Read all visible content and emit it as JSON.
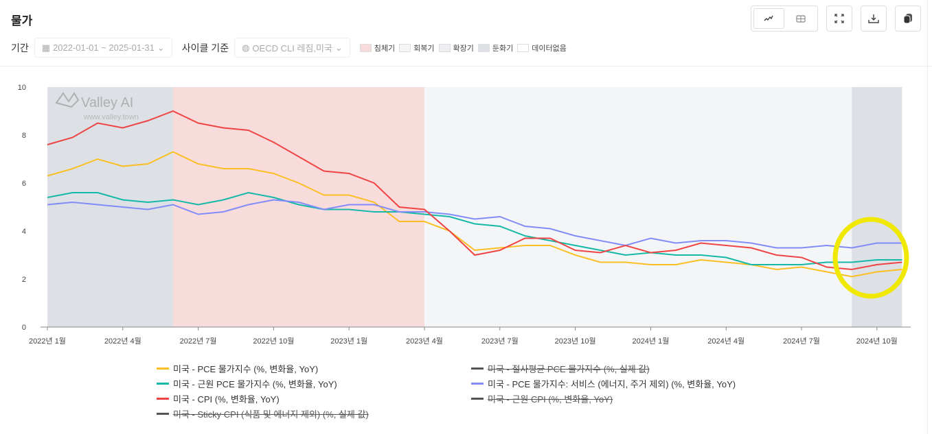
{
  "header": {
    "title": "물가"
  },
  "filters": {
    "period_label": "기간",
    "period_value": "2022-01-01 ~ 2025-01-31",
    "cycle_label": "사이클 기준",
    "cycle_value": "OECD CLI 레짐,미국",
    "phases": [
      {
        "label": "침체기",
        "color": "#f8dcdc"
      },
      {
        "label": "회복기",
        "color": "#f4f5f7"
      },
      {
        "label": "확장기",
        "color": "#eceef1"
      },
      {
        "label": "둔화기",
        "color": "#dde0e5"
      },
      {
        "label": "데이터없음",
        "color": "#ffffff"
      }
    ]
  },
  "toolbar": {
    "icons": [
      "line-chart-icon",
      "table-icon",
      "expand-icon",
      "download-icon",
      "copy-icon"
    ]
  },
  "watermark": {
    "brand": "Valley AI",
    "url": "www.valley.town"
  },
  "chart_data": {
    "type": "line",
    "ylim": [
      0,
      10
    ],
    "yticks": [
      0,
      2,
      4,
      6,
      8,
      10
    ],
    "xtick_labels": [
      "2022년 1월",
      "2022년 4월",
      "2022년 7월",
      "2022년 10월",
      "2023년 1월",
      "2023년 4월",
      "2023년 7월",
      "2023년 10월",
      "2024년 1월",
      "2024년 4월",
      "2024년 7월",
      "2024년 10월"
    ],
    "x_start": "2022-01",
    "x_end": "2024-11",
    "phases": [
      {
        "phase": "둔화기",
        "from": "2022-01",
        "to": "2022-06"
      },
      {
        "phase": "침체기",
        "from": "2022-06",
        "to": "2023-04"
      },
      {
        "phase": "회복기",
        "from": "2023-04",
        "to": "2024-09"
      },
      {
        "phase": "둔화기",
        "from": "2024-09",
        "to": "2024-11"
      }
    ],
    "series": [
      {
        "name": "미국 - PCE 물가지수 (%, 변화율, YoY)",
        "color": "#fbbf24",
        "visible": true,
        "values": [
          6.3,
          6.6,
          7.0,
          6.7,
          6.8,
          7.3,
          6.8,
          6.6,
          6.6,
          6.4,
          6.0,
          5.5,
          5.5,
          5.2,
          4.4,
          4.4,
          4.0,
          3.2,
          3.3,
          3.4,
          3.4,
          3.0,
          2.7,
          2.7,
          2.6,
          2.6,
          2.8,
          2.7,
          2.6,
          2.4,
          2.5,
          2.3,
          2.1,
          2.3,
          2.4
        ]
      },
      {
        "name": "미국 - 절사평균 PCE 물가지수 (%, 실제 값)",
        "color": "#555555",
        "visible": false
      },
      {
        "name": "미국 - 근원 PCE 물가지수 (%, 변화율, YoY)",
        "color": "#14b8a6",
        "visible": true,
        "values": [
          5.4,
          5.6,
          5.6,
          5.3,
          5.2,
          5.3,
          5.1,
          5.3,
          5.6,
          5.4,
          5.1,
          4.9,
          4.9,
          4.8,
          4.8,
          4.7,
          4.6,
          4.3,
          4.2,
          3.8,
          3.6,
          3.4,
          3.2,
          3.0,
          3.1,
          3.0,
          3.0,
          2.9,
          2.6,
          2.6,
          2.6,
          2.7,
          2.7,
          2.8,
          2.8
        ]
      },
      {
        "name": "미국 - PCE 물가지수: 서비스 (에너지, 주거 제외) (%, 변화율, YoY)",
        "color": "#818cf8",
        "visible": true,
        "values": [
          5.1,
          5.2,
          5.1,
          5.0,
          4.9,
          5.1,
          4.7,
          4.8,
          5.1,
          5.3,
          5.2,
          4.9,
          5.1,
          5.1,
          4.8,
          4.8,
          4.7,
          4.5,
          4.6,
          4.2,
          4.1,
          3.8,
          3.6,
          3.4,
          3.7,
          3.5,
          3.6,
          3.6,
          3.5,
          3.3,
          3.3,
          3.4,
          3.3,
          3.5,
          3.5
        ]
      },
      {
        "name": "미국 - CPI (%, 변화율, YoY)",
        "color": "#ef4444",
        "visible": true,
        "values": [
          7.6,
          7.9,
          8.5,
          8.3,
          8.6,
          9.0,
          8.5,
          8.3,
          8.2,
          7.7,
          7.1,
          6.5,
          6.4,
          6.0,
          5.0,
          4.9,
          4.0,
          3.0,
          3.2,
          3.7,
          3.7,
          3.2,
          3.1,
          3.4,
          3.1,
          3.2,
          3.5,
          3.4,
          3.3,
          3.0,
          2.9,
          2.5,
          2.4,
          2.6,
          2.7
        ]
      },
      {
        "name": "미국 - 근원 CPI (%, 변화율, YoY)",
        "color": "#555555",
        "visible": false
      },
      {
        "name": "미국 - Sticky CPI (식품 및 에너지 제외) (%, 실제 값)",
        "color": "#555555",
        "visible": false
      }
    ],
    "annotation": {
      "shape": "highlight-circle",
      "color": "#f0e800",
      "around": "2024-09 ~ 2024-11"
    }
  }
}
